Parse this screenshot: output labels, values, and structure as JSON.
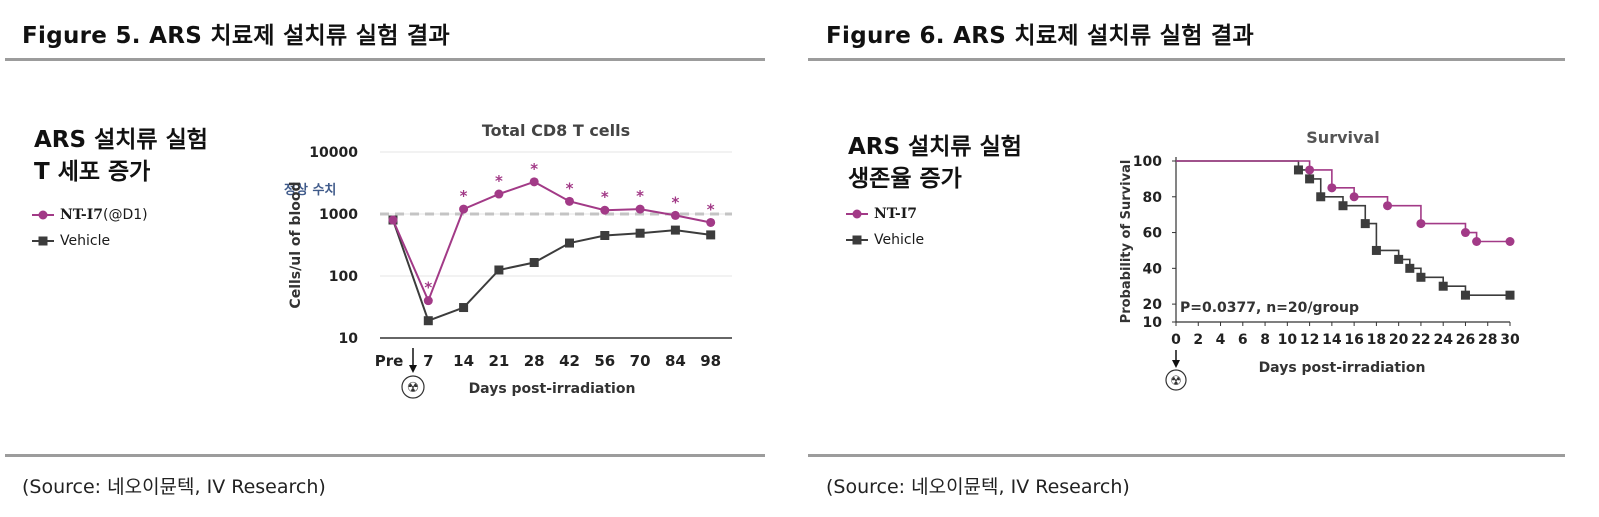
{
  "left": {
    "figure_title": "Figure 5. ARS 치료제 설치류 실험 결과",
    "heading_line1": "ARS 설치류 실험",
    "heading_line2": "T 세포 증가",
    "legend_nt_name": "NT-I7",
    "legend_nt_suffix": " (@D1)",
    "legend_vehicle": "Vehicle",
    "source": "(Source:  네오이뮨텍, IV Research)"
  },
  "right": {
    "figure_title": "Figure 6. ARS 치료제 설치류 실험 결과",
    "heading_line1": "ARS 설치류 실험",
    "heading_line2": "생존율 증가",
    "legend_nt_name": "NT-I7",
    "legend_vehicle": "Vehicle",
    "source": "(Source:  네오이뮨텍, IV Research)"
  },
  "colors": {
    "nt": "#a23a87",
    "vehicle": "#3c3c3c",
    "normal_line": "#c4c4c4",
    "normal_label": "#3f5a8a",
    "grid": "#e4e4e4",
    "rule": "#9c9c9c"
  },
  "chart_data": [
    {
      "type": "line",
      "title": "Total CD8 T cells",
      "xlabel": "Days post-irradiation",
      "ylabel": "Cells/ul of blood",
      "y_scale": "log",
      "ylim": [
        10,
        10000
      ],
      "y_ticks": [
        "10",
        "100",
        "1000",
        "10000"
      ],
      "categories": [
        "Pre",
        "7",
        "14",
        "21",
        "28",
        "42",
        "56",
        "70",
        "84",
        "98"
      ],
      "series": [
        {
          "name": "NT-I7",
          "marker": "circle",
          "values": [
            800,
            40,
            1200,
            2100,
            3300,
            1600,
            1150,
            1200,
            950,
            730
          ]
        },
        {
          "name": "Vehicle",
          "marker": "square",
          "values": [
            800,
            19,
            31,
            125,
            165,
            340,
            450,
            490,
            550,
            460
          ]
        }
      ],
      "significance_marks": {
        "symbol": "*",
        "categories": [
          "7",
          "14",
          "21",
          "28",
          "42",
          "56",
          "70",
          "84",
          "98"
        ]
      },
      "reference_line": {
        "value": 1000,
        "label": "정상 수치",
        "style": "dashed"
      },
      "arrow_at": "Pre",
      "radiation_symbol": "☢",
      "grid": true
    },
    {
      "type": "line",
      "step": true,
      "title": "Survival",
      "xlabel": "Days post-irradiation",
      "ylabel": "Probability of Survival",
      "xlim": [
        0,
        30
      ],
      "ylim": [
        10,
        100
      ],
      "x_ticks": [
        "0",
        "2",
        "4",
        "6",
        "8",
        "10",
        "12",
        "14",
        "16",
        "18",
        "20",
        "22",
        "24",
        "26",
        "28",
        "30"
      ],
      "y_ticks": [
        "10",
        "20",
        "40",
        "60",
        "80",
        "100"
      ],
      "annotation": "P=0.0377, n=20/group",
      "series": [
        {
          "name": "NT-I7",
          "marker": "circle",
          "x": [
            0,
            12,
            14,
            16,
            19,
            22,
            26,
            27,
            30
          ],
          "y": [
            100,
            95,
            85,
            80,
            75,
            65,
            60,
            55,
            55
          ]
        },
        {
          "name": "Vehicle",
          "marker": "square",
          "x": [
            0,
            11,
            12,
            13,
            15,
            17,
            18,
            20,
            21,
            22,
            24,
            26,
            30
          ],
          "y": [
            100,
            95,
            90,
            80,
            75,
            65,
            50,
            45,
            40,
            35,
            30,
            25,
            25
          ]
        }
      ],
      "arrow_at": "0",
      "radiation_symbol": "☢",
      "grid": false
    }
  ]
}
